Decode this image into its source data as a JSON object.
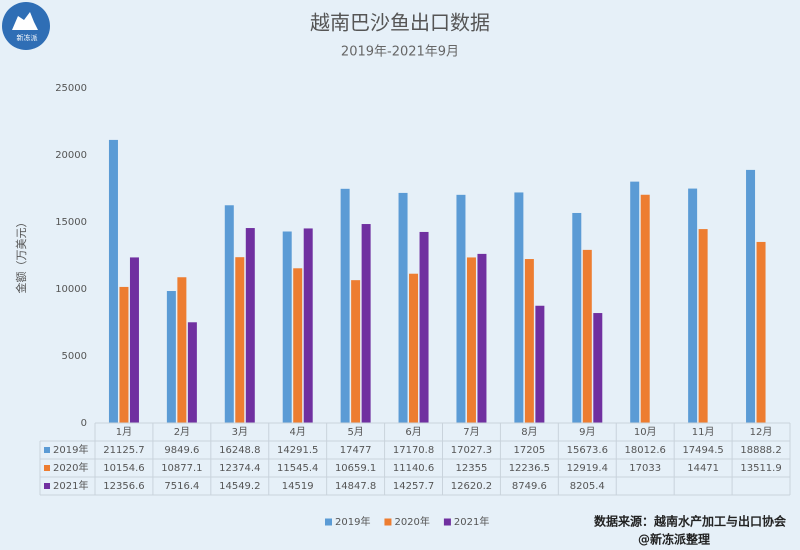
{
  "logo_text": "新冻派",
  "chart_data": {
    "type": "bar",
    "title": "越南巴沙鱼出口数据",
    "subtitle": "2019年-2021年9月",
    "y_label": "金额（万美元）",
    "categories": [
      "1月",
      "2月",
      "3月",
      "4月",
      "5月",
      "6月",
      "7月",
      "8月",
      "9月",
      "10月",
      "11月",
      "12月"
    ],
    "series": [
      {
        "name": "2019年",
        "color": "#5b9bd5",
        "values": [
          21125.7,
          9849.6,
          16248.8,
          14291.5,
          17477,
          17170.8,
          17027.3,
          17205,
          15673.6,
          18012.6,
          17494.5,
          18888.2
        ]
      },
      {
        "name": "2020年",
        "color": "#ed7d31",
        "values": [
          10154.6,
          10877.1,
          12374.4,
          11545.4,
          10659.1,
          11140.6,
          12355,
          12236.5,
          12919.4,
          17033,
          14471,
          13511.9
        ]
      },
      {
        "name": "2021年",
        "color": "#7030a0",
        "values": [
          12356.6,
          7516.4,
          14549.2,
          14519,
          14847.8,
          14257.7,
          12620.2,
          8749.6,
          8205.4,
          null,
          null,
          null
        ]
      }
    ],
    "ylim": [
      0,
      25000
    ],
    "yticks": [
      0,
      5000,
      10000,
      15000,
      20000,
      25000
    ],
    "grid": false,
    "data_table": true,
    "legend": "bottom"
  },
  "source": "数据来源：越南水产加工与出口协会",
  "credit": "@新冻派整理"
}
